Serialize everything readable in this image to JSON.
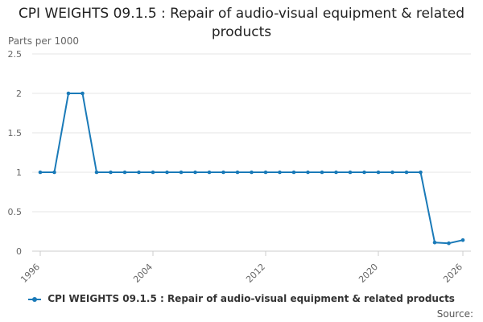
{
  "chart_data": {
    "type": "line",
    "title": "CPI WEIGHTS 09.1.5 : Repair of audio-visual equipment & related products",
    "ylabel": "Parts per 1000",
    "xlabel": "",
    "xlim": [
      1996,
      2026
    ],
    "ylim": [
      0,
      2.5
    ],
    "x_ticks": [
      "1996",
      "2004",
      "2012",
      "2020",
      "2026"
    ],
    "y_ticks": [
      "0",
      "0.5",
      "1",
      "1.5",
      "2",
      "2.5"
    ],
    "grid": true,
    "legend_position": "bottom",
    "series": [
      {
        "name": "CPI WEIGHTS 09.1.5 : Repair of audio-visual equipment & related products",
        "color": "#1a7ab8",
        "x": [
          1996,
          1997,
          1998,
          1999,
          2000,
          2001,
          2002,
          2003,
          2004,
          2005,
          2006,
          2007,
          2008,
          2009,
          2010,
          2011,
          2012,
          2013,
          2014,
          2015,
          2016,
          2017,
          2018,
          2019,
          2020,
          2021,
          2022,
          2023,
          2024,
          2025,
          2026
        ],
        "values": [
          1,
          1,
          2,
          2,
          1,
          1,
          1,
          1,
          1,
          1,
          1,
          1,
          1,
          1,
          1,
          1,
          1,
          1,
          1,
          1,
          1,
          1,
          1,
          1,
          1,
          1,
          1,
          1,
          0.11,
          0.1,
          0.14
        ]
      }
    ]
  },
  "source_label": "Source:"
}
